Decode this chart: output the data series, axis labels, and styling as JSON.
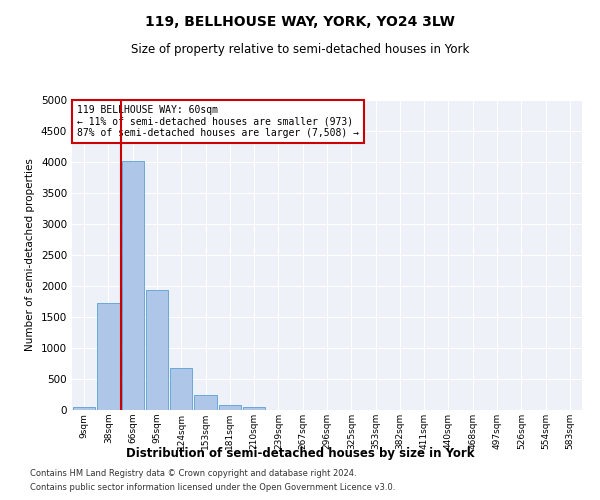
{
  "title1": "119, BELLHOUSE WAY, YORK, YO24 3LW",
  "title2": "Size of property relative to semi-detached houses in York",
  "xlabel": "Distribution of semi-detached houses by size in York",
  "ylabel": "Number of semi-detached properties",
  "annotation_line1": "119 BELLHOUSE WAY: 60sqm",
  "annotation_line2": "← 11% of semi-detached houses are smaller (973)",
  "annotation_line3": "87% of semi-detached houses are larger (7,508) →",
  "footnote1": "Contains HM Land Registry data © Crown copyright and database right 2024.",
  "footnote2": "Contains public sector information licensed under the Open Government Licence v3.0.",
  "bar_labels": [
    "9sqm",
    "38sqm",
    "66sqm",
    "95sqm",
    "124sqm",
    "153sqm",
    "181sqm",
    "210sqm",
    "239sqm",
    "267sqm",
    "296sqm",
    "325sqm",
    "353sqm",
    "382sqm",
    "411sqm",
    "440sqm",
    "468sqm",
    "497sqm",
    "526sqm",
    "554sqm",
    "583sqm"
  ],
  "bar_values": [
    55,
    1730,
    4020,
    1940,
    670,
    235,
    85,
    55,
    0,
    0,
    0,
    0,
    0,
    0,
    0,
    0,
    0,
    0,
    0,
    0,
    0
  ],
  "bar_color": "#aec6e8",
  "bar_edge_color": "#5a9fd4",
  "vline_color": "#cc0000",
  "annotation_box_color": "#cc0000",
  "background_color": "#eef2f8",
  "ylim": [
    0,
    5000
  ],
  "yticks": [
    0,
    500,
    1000,
    1500,
    2000,
    2500,
    3000,
    3500,
    4000,
    4500,
    5000
  ]
}
